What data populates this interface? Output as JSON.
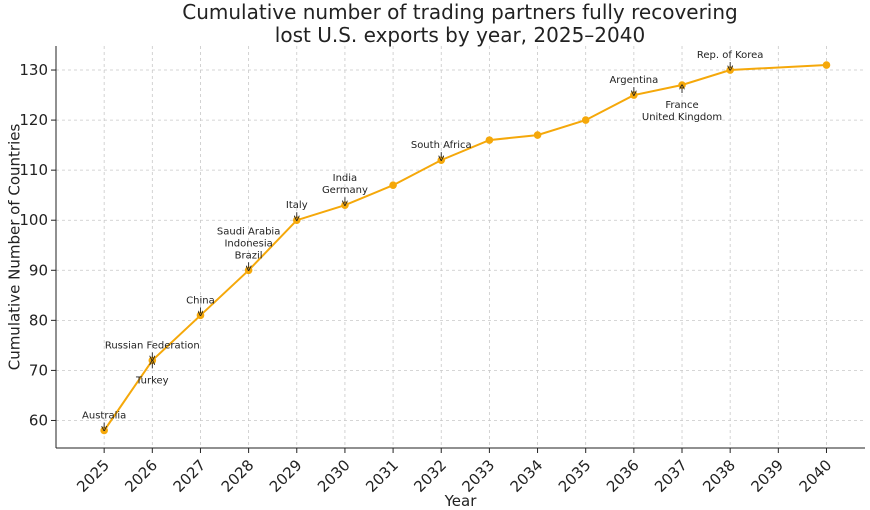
{
  "chart_data": {
    "type": "line",
    "title": "Cumulative number of trading partners fully recovering lost U.S. exports by year, 2025–2040",
    "title_lines": [
      "Cumulative number of trading partners fully recovering",
      "lost U.S. exports by year, 2025–2040"
    ],
    "xlabel": "Year",
    "ylabel": "Cumulative Number of Countries",
    "x": [
      2025,
      2026,
      2027,
      2028,
      2029,
      2030,
      2031,
      2032,
      2033,
      2034,
      2035,
      2036,
      2037,
      2038,
      2039,
      2040
    ],
    "y": [
      58,
      72,
      81,
      90,
      100,
      103,
      107,
      112,
      116,
      117,
      120,
      125,
      127,
      130,
      null,
      131
    ],
    "xlim": [
      2024.0,
      2040.8
    ],
    "ylim": [
      54.5,
      134.8
    ],
    "y_ticks": [
      60,
      70,
      80,
      90,
      100,
      110,
      120,
      130
    ],
    "x_ticks": [
      "2025",
      "2026",
      "2027",
      "2028",
      "2029",
      "2030",
      "2031",
      "2032",
      "2033",
      "2034",
      "2035",
      "2036",
      "2037",
      "2038",
      "2039",
      "2040"
    ],
    "grid": true,
    "line_color": "#F5A80A",
    "annotations": [
      {
        "label": "Australia",
        "x": 2025,
        "y": 58,
        "position": "above"
      },
      {
        "label": "Russian Federation",
        "x": 2026,
        "y": 72,
        "position": "above"
      },
      {
        "label": "Turkey",
        "x": 2026,
        "y": 72,
        "position": "below"
      },
      {
        "label": "China",
        "x": 2027,
        "y": 81,
        "position": "above"
      },
      {
        "label": "Saudi Arabia\nIndonesia\nBrazil",
        "x": 2028,
        "y": 90,
        "position": "above"
      },
      {
        "label": "Italy",
        "x": 2029,
        "y": 100,
        "position": "above"
      },
      {
        "label": "India\nGermany",
        "x": 2030,
        "y": 103,
        "position": "above"
      },
      {
        "label": "South Africa",
        "x": 2032,
        "y": 112,
        "position": "above"
      },
      {
        "label": "Argentina",
        "x": 2036,
        "y": 125,
        "position": "above"
      },
      {
        "label": "France\nUnited Kingdom",
        "x": 2037,
        "y": 127,
        "position": "below"
      },
      {
        "label": "Rep. of Korea",
        "x": 2038,
        "y": 130,
        "position": "above"
      }
    ]
  }
}
